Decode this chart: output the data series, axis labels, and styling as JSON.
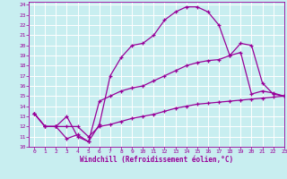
{
  "title": "",
  "xlabel": "Windchill (Refroidissement éolien,°C)",
  "ylabel": "",
  "xlim": [
    -0.5,
    23
  ],
  "ylim": [
    10,
    24.3
  ],
  "xticks": [
    0,
    1,
    2,
    3,
    4,
    5,
    6,
    7,
    8,
    9,
    10,
    11,
    12,
    13,
    14,
    15,
    16,
    17,
    18,
    19,
    20,
    21,
    22,
    23
  ],
  "yticks": [
    10,
    11,
    12,
    13,
    14,
    15,
    16,
    17,
    18,
    19,
    20,
    21,
    22,
    23,
    24
  ],
  "bg_color": "#c8eef0",
  "line_color": "#990099",
  "grid_color": "#ffffff",
  "line1_x": [
    0,
    1,
    2,
    3,
    4,
    5,
    6,
    7,
    8,
    9,
    10,
    11,
    12,
    13,
    14,
    15,
    16,
    17,
    18,
    19,
    20,
    21,
    22,
    23
  ],
  "line1_y": [
    13.3,
    12.0,
    12.0,
    13.0,
    11.0,
    10.5,
    12.2,
    17.0,
    18.8,
    20.0,
    20.2,
    21.0,
    22.5,
    23.3,
    23.8,
    23.8,
    23.3,
    22.0,
    19.0,
    20.2,
    20.0,
    16.3,
    15.2,
    15.0
  ],
  "line2_x": [
    0,
    1,
    2,
    3,
    4,
    5,
    6,
    7,
    8,
    9,
    10,
    11,
    12,
    13,
    14,
    15,
    16,
    17,
    18,
    19,
    20,
    21,
    22,
    23
  ],
  "line2_y": [
    13.3,
    12.0,
    12.0,
    10.8,
    11.2,
    10.5,
    14.5,
    15.0,
    15.5,
    15.8,
    16.0,
    16.5,
    17.0,
    17.5,
    18.0,
    18.3,
    18.5,
    18.6,
    19.0,
    19.3,
    15.2,
    15.5,
    15.3,
    15.0
  ],
  "line3_x": [
    0,
    1,
    2,
    3,
    4,
    5,
    6,
    7,
    8,
    9,
    10,
    11,
    12,
    13,
    14,
    15,
    16,
    17,
    18,
    19,
    20,
    21,
    22,
    23
  ],
  "line3_y": [
    13.3,
    12.0,
    12.0,
    12.0,
    12.0,
    11.0,
    12.0,
    12.2,
    12.5,
    12.8,
    13.0,
    13.2,
    13.5,
    13.8,
    14.0,
    14.2,
    14.3,
    14.4,
    14.5,
    14.6,
    14.7,
    14.8,
    14.9,
    15.0
  ],
  "tick_fontsize": 4.5,
  "xlabel_fontsize": 5.5,
  "marker_size": 3,
  "linewidth": 0.9
}
